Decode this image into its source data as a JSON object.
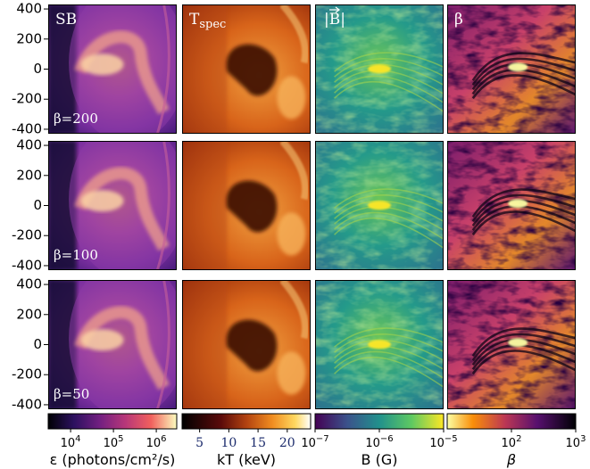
{
  "chart_data": {
    "type": "heatmap",
    "panel_titles": [
      "SB",
      "T",
      "|B|",
      "β"
    ],
    "tspec_subscript": "spec",
    "row_labels": [
      "β=200",
      "β=100",
      "β=50"
    ],
    "y_ticks": [
      400,
      200,
      0,
      -200,
      -400
    ],
    "y_tick_labels": [
      "400",
      "200",
      "0",
      "-200",
      "-400"
    ],
    "ylim": [
      -430,
      430
    ],
    "colorbars": [
      {
        "name": "sb",
        "label": "ε (photons/cm²/s)",
        "scale": "log",
        "range": [
          3000.0,
          3000000.0
        ],
        "colormap": "magma",
        "ticks": [
          {
            "base": "10",
            "exp": "4",
            "value": 10000.0
          },
          {
            "base": "10",
            "exp": "5",
            "value": 100000.0
          },
          {
            "base": "10",
            "exp": "6",
            "value": 1000000.0
          }
        ]
      },
      {
        "name": "kt",
        "label": "kT (keV)",
        "scale": "linear",
        "range": [
          2,
          24
        ],
        "colormap": "afmhot",
        "ticks": [
          {
            "text": "5",
            "value": 5
          },
          {
            "text": "10",
            "value": 10
          },
          {
            "text": "15",
            "value": 15
          },
          {
            "text": "20",
            "value": 20
          }
        ]
      },
      {
        "name": "b",
        "label": "B (G)",
        "scale": "log",
        "range": [
          1e-07,
          1e-05
        ],
        "colormap": "viridis",
        "ticks": [
          {
            "base": "10",
            "exp": "−7",
            "value": 1e-07
          },
          {
            "base": "10",
            "exp": "−6",
            "value": 1e-06
          },
          {
            "base": "10",
            "exp": "−5",
            "value": 1e-05
          }
        ]
      },
      {
        "name": "beta",
        "label": "β",
        "scale": "log",
        "range": [
          10,
          1000.0
        ],
        "colormap": "inferno_r",
        "ticks": [
          {
            "base": "10",
            "exp": "2",
            "value": 100
          },
          {
            "base": "10",
            "exp": "3",
            "value": 1000
          }
        ]
      }
    ]
  }
}
